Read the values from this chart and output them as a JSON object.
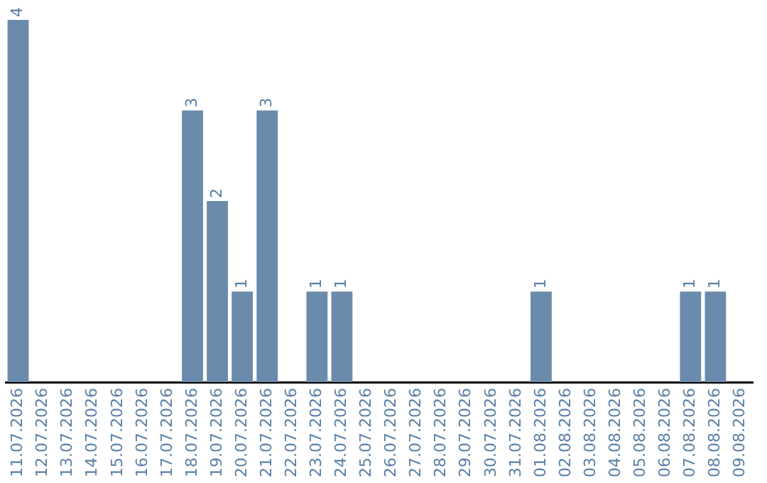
{
  "chart_data": {
    "type": "bar",
    "categories": [
      "11.07.2026",
      "12.07.2026",
      "13.07.2026",
      "14.07.2026",
      "15.07.2026",
      "16.07.2026",
      "17.07.2026",
      "18.07.2026",
      "19.07.2026",
      "20.07.2026",
      "21.07.2026",
      "22.07.2026",
      "23.07.2026",
      "24.07.2026",
      "25.07.2026",
      "26.07.2026",
      "27.07.2026",
      "28.07.2026",
      "29.07.2026",
      "30.07.2026",
      "31.07.2026",
      "01.08.2026",
      "02.08.2026",
      "03.08.2026",
      "04.08.2026",
      "05.08.2026",
      "06.08.2026",
      "07.08.2026",
      "08.08.2026",
      "09.08.2026"
    ],
    "values": [
      4,
      0,
      0,
      0,
      0,
      0,
      0,
      3,
      2,
      1,
      3,
      0,
      1,
      1,
      0,
      0,
      0,
      0,
      0,
      0,
      0,
      1,
      0,
      0,
      0,
      0,
      0,
      1,
      1,
      0
    ],
    "value_labels": [
      "4",
      null,
      null,
      null,
      null,
      null,
      null,
      "3",
      "2",
      "1",
      "3",
      null,
      "1",
      "1",
      null,
      null,
      null,
      null,
      null,
      null,
      null,
      "1",
      null,
      null,
      null,
      null,
      null,
      "1",
      "1",
      null
    ],
    "color": "#6a8bab",
    "tick_labels": "x",
    "grid": false,
    "legend": false
  }
}
